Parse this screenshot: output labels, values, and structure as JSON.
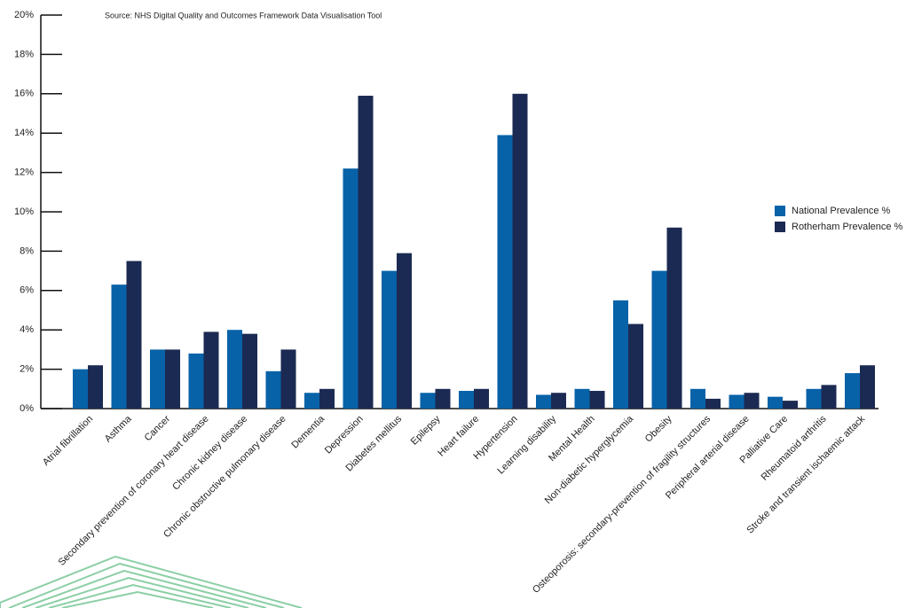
{
  "chart_data": {
    "type": "bar",
    "annotation": "Source: NHS Digital Quality and Outcomes Framework Data Visualisation Tool",
    "categories": [
      "Atrial fibrillation",
      "Asthma",
      "Cancer",
      "Secondary prevention of coronary heart disease",
      "Chronic kidney disease",
      "Chronic obstructive pulmonary disease",
      "Dementia",
      "Depression",
      "Diabetes mellitus",
      "Epilepsy",
      "Heart failure",
      "Hypertension",
      "Learning disability",
      "Mental Health",
      "Non-diabetic hyperglycemia",
      "Obesity",
      "Osteoporosis: secondary-prevention of fragility structures",
      "Peripheral arterial disease",
      "Palliative Care",
      "Rheumatoid arthritis",
      "Stroke and transient ischaemic attack"
    ],
    "series": [
      {
        "name": "National Prevalence %",
        "color": "#0762a8",
        "values": [
          2.0,
          6.3,
          3.0,
          2.8,
          4.0,
          1.9,
          0.8,
          12.2,
          7.0,
          0.8,
          0.9,
          13.9,
          0.7,
          1.0,
          5.5,
          7.0,
          1.0,
          0.7,
          0.6,
          1.0,
          1.8
        ]
      },
      {
        "name": "Rotherham Prevalence %",
        "color": "#1b2a52",
        "values": [
          2.2,
          7.5,
          3.0,
          3.9,
          3.8,
          3.0,
          1.0,
          15.9,
          7.9,
          1.0,
          1.0,
          16.0,
          0.8,
          0.9,
          4.3,
          9.2,
          0.5,
          0.8,
          0.4,
          1.2,
          2.2
        ]
      }
    ],
    "ylim": [
      0,
      20
    ],
    "yticks": [
      {
        "value": 0,
        "label": "0%"
      },
      {
        "value": 2,
        "label": "2%"
      },
      {
        "value": 4,
        "label": "4%"
      },
      {
        "value": 6,
        "label": "6%"
      },
      {
        "value": 8,
        "label": "8%"
      },
      {
        "value": 10,
        "label": "10%"
      },
      {
        "value": 12,
        "label": "12%"
      },
      {
        "value": 14,
        "label": "14%"
      },
      {
        "value": 16,
        "label": "16%"
      },
      {
        "value": 18,
        "label": "18%"
      },
      {
        "value": 20,
        "label": "20%"
      }
    ],
    "legend": "right"
  }
}
